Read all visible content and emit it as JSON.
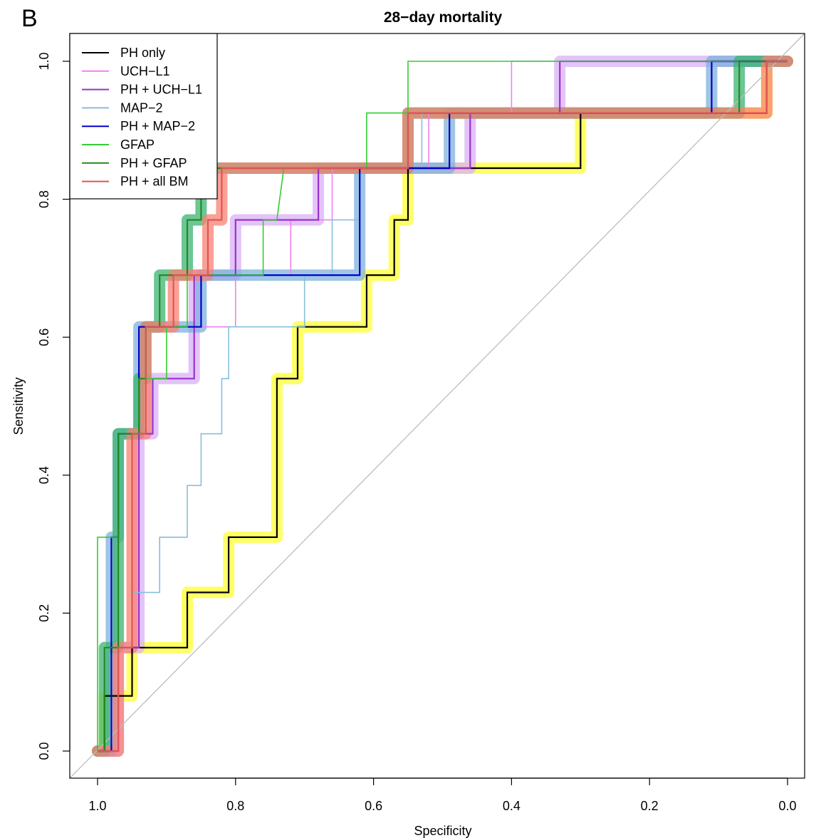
{
  "panel_label": "B",
  "chart_data": {
    "type": "line",
    "title": "28−day mortality",
    "xlabel": "Specificity",
    "ylabel": "Sensitivity",
    "xlim": [
      1.0,
      0.0
    ],
    "ylim": [
      0.0,
      1.0
    ],
    "x_ticks": [
      1.0,
      0.8,
      0.6,
      0.4,
      0.2,
      0.0
    ],
    "x_tick_labels": [
      "1.0",
      "0.8",
      "0.6",
      "0.4",
      "0.2",
      "0.0"
    ],
    "y_ticks": [
      0.0,
      0.2,
      0.4,
      0.6,
      0.8,
      1.0
    ],
    "y_tick_labels": [
      "0.0",
      "0.2",
      "0.4",
      "0.6",
      "0.8",
      "1.0"
    ],
    "grid": false,
    "legend_position": "top-left",
    "reference_line": {
      "from": [
        1.0,
        0.0
      ],
      "to": [
        0.0,
        1.0
      ],
      "color": "#bdbdbd"
    },
    "series": [
      {
        "name": "PH only",
        "color": "#000000",
        "band_color": "#ffff33",
        "points": [
          [
            1.0,
            0.0
          ],
          [
            0.99,
            0.0
          ],
          [
            0.99,
            0.08
          ],
          [
            0.95,
            0.08
          ],
          [
            0.95,
            0.15
          ],
          [
            0.87,
            0.15
          ],
          [
            0.87,
            0.23
          ],
          [
            0.81,
            0.23
          ],
          [
            0.81,
            0.31
          ],
          [
            0.74,
            0.31
          ],
          [
            0.74,
            0.54
          ],
          [
            0.71,
            0.54
          ],
          [
            0.71,
            0.615
          ],
          [
            0.61,
            0.615
          ],
          [
            0.61,
            0.69
          ],
          [
            0.57,
            0.69
          ],
          [
            0.57,
            0.77
          ],
          [
            0.55,
            0.77
          ],
          [
            0.55,
            0.845
          ],
          [
            0.3,
            0.845
          ],
          [
            0.3,
            0.925
          ],
          [
            0.03,
            0.925
          ],
          [
            0.03,
            1.0
          ],
          [
            0.0,
            1.0
          ]
        ]
      },
      {
        "name": "UCH−L1",
        "color": "#ee82ee",
        "band_color": null,
        "points": [
          [
            1.0,
            0.0
          ],
          [
            0.97,
            0.0
          ],
          [
            0.97,
            0.15
          ],
          [
            0.94,
            0.15
          ],
          [
            0.94,
            0.46
          ],
          [
            0.93,
            0.46
          ],
          [
            0.93,
            0.54
          ],
          [
            0.86,
            0.54
          ],
          [
            0.86,
            0.615
          ],
          [
            0.8,
            0.615
          ],
          [
            0.8,
            0.69
          ],
          [
            0.72,
            0.69
          ],
          [
            0.72,
            0.77
          ],
          [
            0.66,
            0.77
          ],
          [
            0.66,
            0.845
          ],
          [
            0.52,
            0.845
          ],
          [
            0.52,
            0.925
          ],
          [
            0.4,
            0.925
          ],
          [
            0.4,
            1.0
          ],
          [
            0.0,
            1.0
          ]
        ]
      },
      {
        "name": "PH + UCH−L1",
        "color": "#9932cc",
        "band_color": "#dab0f5",
        "points": [
          [
            1.0,
            0.0
          ],
          [
            0.97,
            0.0
          ],
          [
            0.97,
            0.15
          ],
          [
            0.94,
            0.15
          ],
          [
            0.94,
            0.46
          ],
          [
            0.92,
            0.46
          ],
          [
            0.92,
            0.54
          ],
          [
            0.86,
            0.54
          ],
          [
            0.86,
            0.69
          ],
          [
            0.8,
            0.69
          ],
          [
            0.8,
            0.77
          ],
          [
            0.68,
            0.77
          ],
          [
            0.68,
            0.845
          ],
          [
            0.46,
            0.845
          ],
          [
            0.46,
            0.925
          ],
          [
            0.33,
            0.925
          ],
          [
            0.33,
            1.0
          ],
          [
            0.0,
            1.0
          ]
        ]
      },
      {
        "name": "MAP−2",
        "color": "#87bfdc",
        "band_color": null,
        "points": [
          [
            1.0,
            0.0
          ],
          [
            0.97,
            0.0
          ],
          [
            0.97,
            0.15
          ],
          [
            0.95,
            0.15
          ],
          [
            0.95,
            0.23
          ],
          [
            0.91,
            0.23
          ],
          [
            0.91,
            0.31
          ],
          [
            0.87,
            0.31
          ],
          [
            0.87,
            0.385
          ],
          [
            0.85,
            0.385
          ],
          [
            0.85,
            0.46
          ],
          [
            0.82,
            0.46
          ],
          [
            0.82,
            0.54
          ],
          [
            0.81,
            0.54
          ],
          [
            0.81,
            0.615
          ],
          [
            0.7,
            0.615
          ],
          [
            0.7,
            0.69
          ],
          [
            0.66,
            0.69
          ],
          [
            0.66,
            0.77
          ],
          [
            0.62,
            0.77
          ],
          [
            0.62,
            0.845
          ],
          [
            0.53,
            0.845
          ],
          [
            0.53,
            0.925
          ],
          [
            0.07,
            0.925
          ],
          [
            0.07,
            1.0
          ],
          [
            0.0,
            1.0
          ]
        ]
      },
      {
        "name": "PH + MAP−2",
        "color": "#0000cd",
        "band_color": "#7fb2dc",
        "points": [
          [
            1.0,
            0.0
          ],
          [
            0.98,
            0.0
          ],
          [
            0.98,
            0.31
          ],
          [
            0.97,
            0.31
          ],
          [
            0.97,
            0.46
          ],
          [
            0.94,
            0.46
          ],
          [
            0.94,
            0.615
          ],
          [
            0.85,
            0.615
          ],
          [
            0.85,
            0.69
          ],
          [
            0.62,
            0.69
          ],
          [
            0.62,
            0.845
          ],
          [
            0.49,
            0.845
          ],
          [
            0.49,
            0.925
          ],
          [
            0.11,
            0.925
          ],
          [
            0.11,
            1.0
          ],
          [
            0.0,
            1.0
          ]
        ]
      },
      {
        "name": "GFAP",
        "color": "#32cd32",
        "band_color": null,
        "points": [
          [
            1.0,
            0.0
          ],
          [
            1.0,
            0.31
          ],
          [
            0.97,
            0.31
          ],
          [
            0.97,
            0.46
          ],
          [
            0.94,
            0.46
          ],
          [
            0.94,
            0.54
          ],
          [
            0.9,
            0.54
          ],
          [
            0.9,
            0.615
          ],
          [
            0.87,
            0.615
          ],
          [
            0.87,
            0.69
          ],
          [
            0.76,
            0.69
          ],
          [
            0.76,
            0.77
          ],
          [
            0.74,
            0.77
          ],
          [
            0.73,
            0.845
          ],
          [
            0.61,
            0.845
          ],
          [
            0.61,
            0.925
          ],
          [
            0.55,
            0.925
          ],
          [
            0.55,
            1.0
          ],
          [
            0.0,
            1.0
          ]
        ]
      },
      {
        "name": "PH + GFAP",
        "color": "#228b22",
        "band_color": "#3cb371",
        "points": [
          [
            1.0,
            0.0
          ],
          [
            0.99,
            0.0
          ],
          [
            0.99,
            0.15
          ],
          [
            0.97,
            0.15
          ],
          [
            0.97,
            0.46
          ],
          [
            0.94,
            0.46
          ],
          [
            0.94,
            0.54
          ],
          [
            0.93,
            0.54
          ],
          [
            0.93,
            0.615
          ],
          [
            0.91,
            0.615
          ],
          [
            0.91,
            0.69
          ],
          [
            0.87,
            0.69
          ],
          [
            0.87,
            0.77
          ],
          [
            0.85,
            0.77
          ],
          [
            0.85,
            0.845
          ],
          [
            0.55,
            0.845
          ],
          [
            0.55,
            0.925
          ],
          [
            0.07,
            0.925
          ],
          [
            0.07,
            1.0
          ],
          [
            0.0,
            1.0
          ]
        ]
      },
      {
        "name": "PH + all BM",
        "color": "#e05555",
        "band_color": "#fa8072",
        "points": [
          [
            1.0,
            0.0
          ],
          [
            0.97,
            0.0
          ],
          [
            0.97,
            0.15
          ],
          [
            0.95,
            0.15
          ],
          [
            0.95,
            0.46
          ],
          [
            0.93,
            0.46
          ],
          [
            0.93,
            0.615
          ],
          [
            0.89,
            0.615
          ],
          [
            0.89,
            0.69
          ],
          [
            0.84,
            0.69
          ],
          [
            0.84,
            0.77
          ],
          [
            0.82,
            0.77
          ],
          [
            0.82,
            0.845
          ],
          [
            0.55,
            0.845
          ],
          [
            0.55,
            0.925
          ],
          [
            0.03,
            0.925
          ],
          [
            0.03,
            1.0
          ],
          [
            0.0,
            1.0
          ]
        ]
      }
    ]
  }
}
